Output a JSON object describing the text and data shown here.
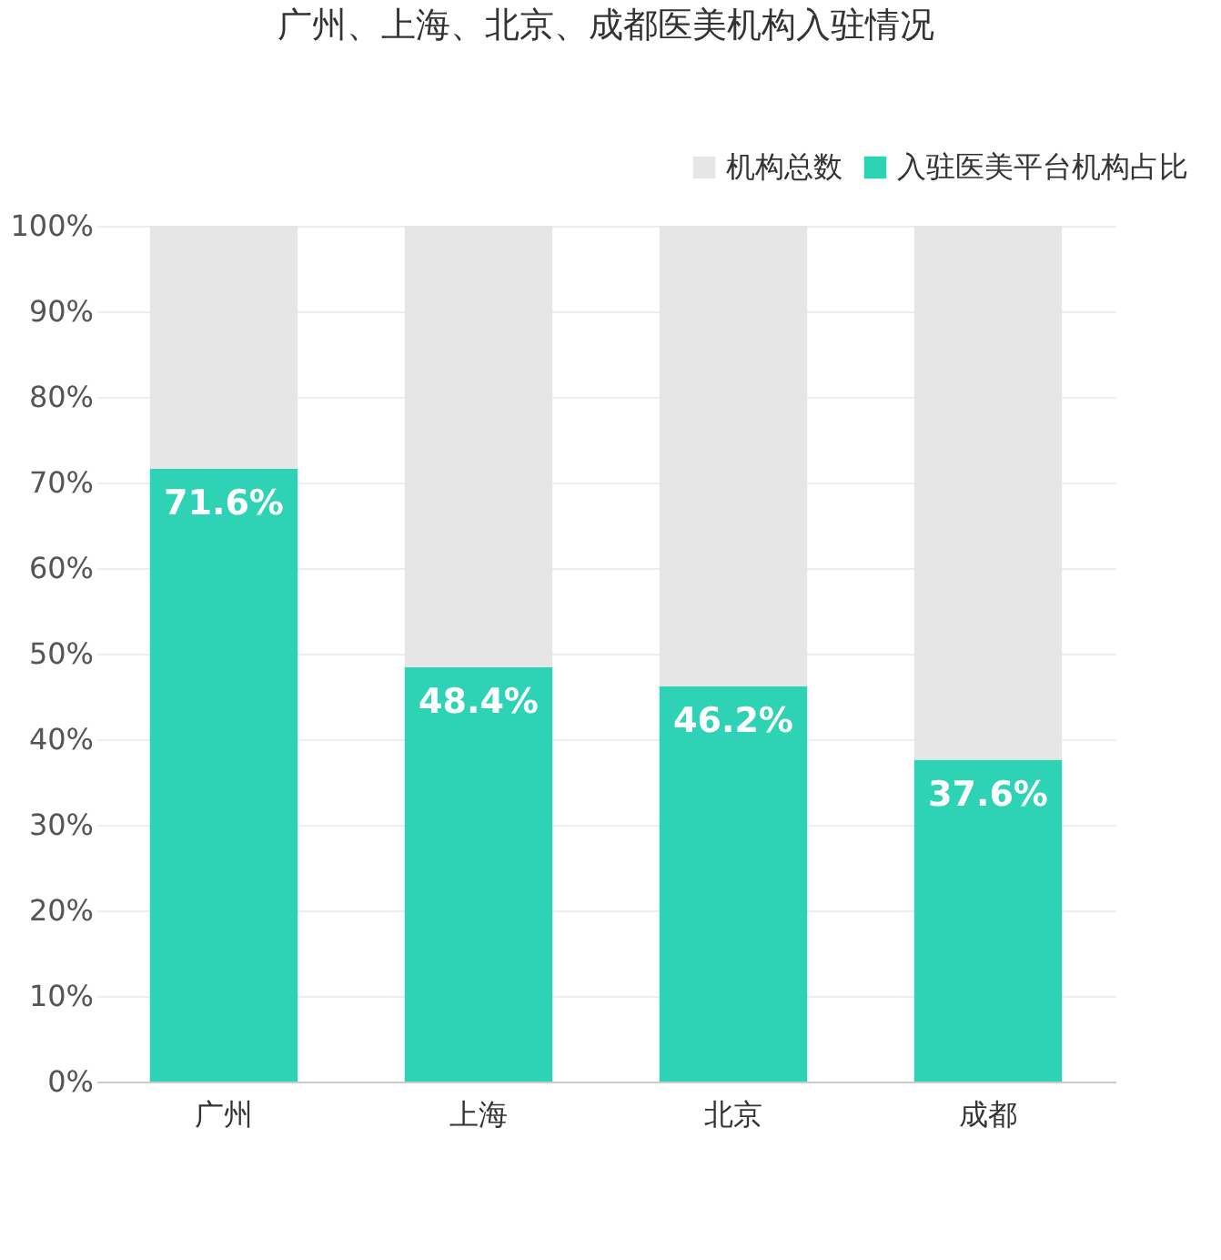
{
  "chart_data": {
    "type": "bar",
    "title": "广州、上海、北京、成都医美机构入驻情况",
    "categories": [
      "广州",
      "上海",
      "北京",
      "成都"
    ],
    "stacked": true,
    "series": [
      {
        "name": "入驻医美平台机构占比",
        "color": "#2ed3b5",
        "values": [
          71.6,
          48.4,
          46.2,
          37.6
        ],
        "value_labels": [
          "71.6%",
          "48.4%",
          "46.2%",
          "37.6%"
        ]
      },
      {
        "name": "机构总数",
        "color": "#e6e6e6",
        "values": [
          28.4,
          51.6,
          53.8,
          62.4
        ]
      }
    ],
    "ylim": [
      0,
      100
    ],
    "yticks": [
      {
        "value": 0,
        "label": "0%"
      },
      {
        "value": 10,
        "label": "10%"
      },
      {
        "value": 20,
        "label": "20%"
      },
      {
        "value": 30,
        "label": "30%"
      },
      {
        "value": 40,
        "label": "40%"
      },
      {
        "value": 50,
        "label": "50%"
      },
      {
        "value": 60,
        "label": "60%"
      },
      {
        "value": 70,
        "label": "70%"
      },
      {
        "value": 80,
        "label": "80%"
      },
      {
        "value": 90,
        "label": "90%"
      },
      {
        "value": 100,
        "label": "100%"
      }
    ],
    "grid": "y",
    "legend": "top right"
  }
}
